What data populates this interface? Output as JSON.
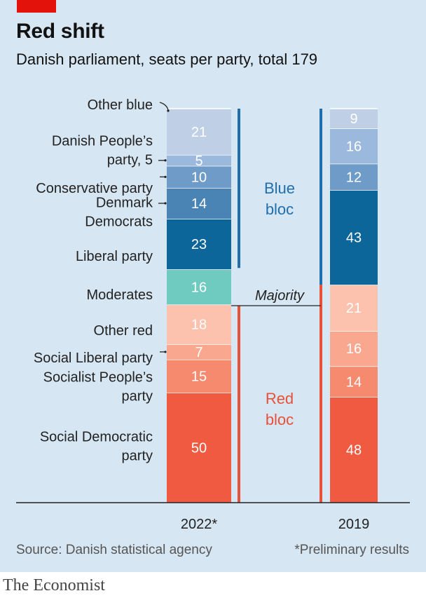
{
  "header": {
    "title": "Red shift",
    "subtitle": "Danish parliament, seats per party, total 179"
  },
  "footer": {
    "source": "Source: Danish statistical agency",
    "note": "*Preliminary results",
    "brand": "The Economist"
  },
  "colors": {
    "blue_bloc_line": "#1f6fae",
    "red_bloc_line": "#e8503a",
    "blue_text": "#1f6fae",
    "red_text": "#e8503a"
  },
  "chart_data": {
    "type": "bar",
    "stacked": true,
    "total": 179,
    "categories": [
      "2022*",
      "2019"
    ],
    "majority_label": "Majority",
    "majority_seats": 90,
    "blocs": [
      {
        "name": "Blue\nbloc",
        "lines": [
          "Blue",
          "bloc"
        ],
        "color": "#1f6fae"
      },
      {
        "name": "Red\nbloc",
        "lines": [
          "Red",
          "bloc"
        ],
        "color": "#e8503a"
      }
    ],
    "series": [
      {
        "name": "Social Democratic party",
        "lines": [
          "Social Democratic",
          "party"
        ],
        "color": "#f05a40",
        "text_color": "#ffffff",
        "values": [
          50,
          48
        ]
      },
      {
        "name": "Socialist People’s party",
        "lines": [
          "Socialist People’s",
          "party"
        ],
        "color": "#f58a6e",
        "text_color": "#ffffff",
        "values": [
          15,
          14
        ]
      },
      {
        "name": "Social Liberal party",
        "lines": [
          "Social Liberal party"
        ],
        "color": "#f9a88f",
        "text_color": "#ffffff",
        "values": [
          7,
          16
        ]
      },
      {
        "name": "Other red",
        "lines": [
          "Other red"
        ],
        "color": "#fcc2ad",
        "text_color": "#ffffff",
        "values": [
          18,
          21
        ]
      },
      {
        "name": "Moderates",
        "lines": [
          "Moderates"
        ],
        "color": "#6fcac0",
        "text_color": "#ffffff",
        "values": [
          16,
          0
        ]
      },
      {
        "name": "Liberal party",
        "lines": [
          "Liberal party"
        ],
        "color": "#0d6699",
        "text_color": "#ffffff",
        "values": [
          23,
          43
        ]
      },
      {
        "name": "Denmark Democrats",
        "lines": [
          "Denmark",
          "Democrats"
        ],
        "color": "#4a84b5",
        "text_color": "#ffffff",
        "values": [
          14,
          0
        ]
      },
      {
        "name": "Conservative party",
        "lines": [
          "Conservative party"
        ],
        "color": "#6e9bc7",
        "text_color": "#ffffff",
        "values": [
          10,
          12
        ]
      },
      {
        "name": "Danish People’s party, 5",
        "lines": [
          "Danish People’s",
          "party, 5"
        ],
        "color": "#9bb9dc",
        "text_color": "#ffffff",
        "values": [
          5,
          16
        ]
      },
      {
        "name": "Other blue",
        "lines": [
          "Other blue"
        ],
        "color": "#bfd0e6",
        "text_color": "#ffffff",
        "values": [
          21,
          9
        ]
      }
    ]
  }
}
